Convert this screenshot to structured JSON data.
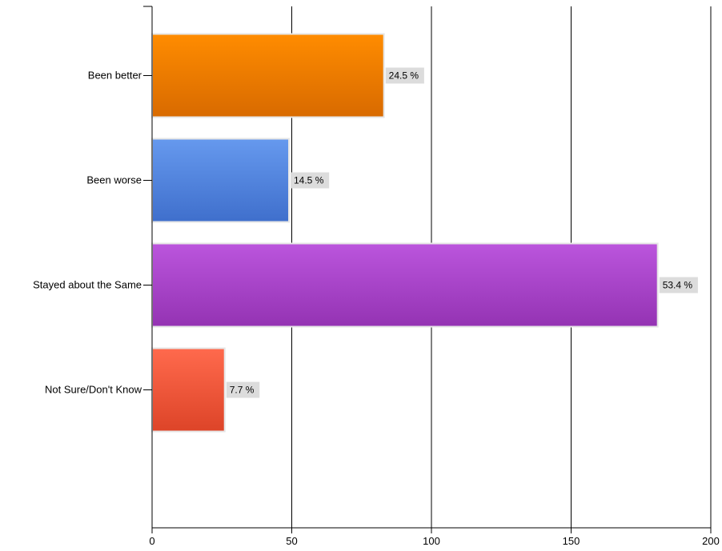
{
  "chart_data": {
    "type": "bar",
    "orientation": "horizontal",
    "title": "",
    "xlabel": "",
    "ylabel": "",
    "categories": [
      "Been better",
      "Been worse",
      "Stayed about the Same",
      "Not Sure/Don't Know"
    ],
    "values": [
      83,
      49,
      181,
      26
    ],
    "data_labels": [
      "24.5 %",
      "14.5 %",
      "53.4 %",
      "7.7 %"
    ],
    "xlim": [
      0,
      200
    ],
    "x_ticks": [
      0,
      50,
      100,
      150,
      200
    ],
    "x_tick_labels": [
      "0",
      "50",
      "100",
      "150",
      "200"
    ],
    "grid": "vertical lines",
    "legend": "none",
    "colors": [
      {
        "top": "#ff8c00",
        "bottom": "#d86a00"
      },
      {
        "top": "#6699ee",
        "bottom": "#3f6fcc"
      },
      {
        "top": "#bb55dd",
        "bottom": "#9433b3"
      },
      {
        "top": "#ff6a4d",
        "bottom": "#dd4428"
      }
    ],
    "label_bg": "#dcdcdc",
    "bar_border": "#e6e6e6"
  }
}
